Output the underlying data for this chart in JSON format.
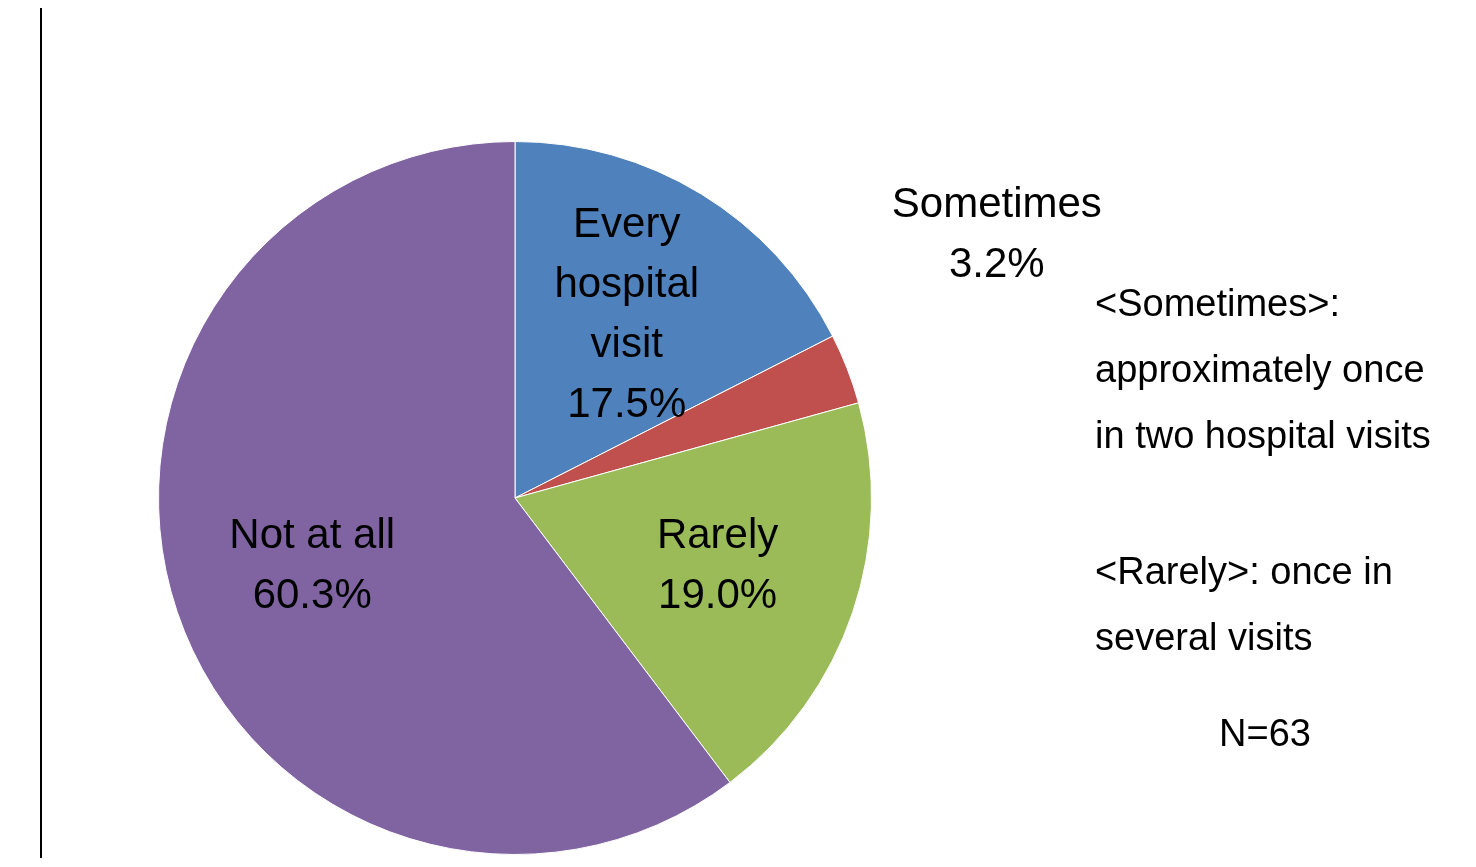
{
  "chart_data": {
    "type": "pie",
    "categories": [
      "Every hospital visit",
      "Sometimes",
      "Rarely",
      "Not at all"
    ],
    "values": [
      17.5,
      3.2,
      19.0,
      60.3
    ],
    "value_labels": [
      "17.5%",
      "3.2%",
      "19.0%",
      "60.3%"
    ],
    "colors": [
      "#4f81bd",
      "#c0504d",
      "#9bbb59",
      "#8064a2"
    ],
    "legend": false,
    "annotations": [
      "<Sometimes>: approximately once in two hospital visits",
      "<Rarely>: once in several visits",
      "N=63"
    ]
  }
}
